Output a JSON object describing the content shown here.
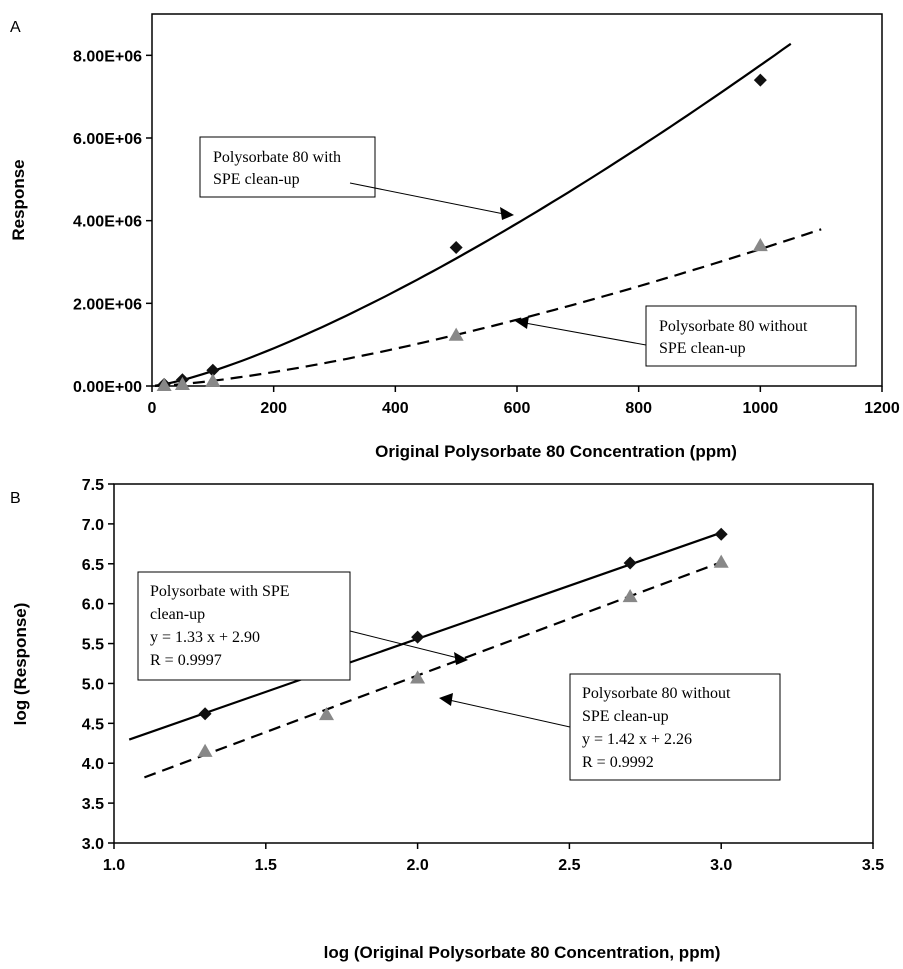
{
  "chart_data": [
    {
      "panel": "A",
      "type": "scatter",
      "xlabel": "Original Polysorbate 80 Concentration (ppm)",
      "ylabel": "Response",
      "xlim": [
        0,
        1200
      ],
      "ylim": [
        0,
        9000000
      ],
      "xticks": [
        "0",
        "200",
        "400",
        "600",
        "800",
        "1000",
        "1200"
      ],
      "yticks": [
        "0.00E+00",
        "2.00E+06",
        "4.00E+06",
        "6.00E+06",
        "8.00E+06"
      ],
      "series": [
        {
          "marker": "diamond",
          "color": "#111111",
          "line_style": "solid",
          "x": [
            20,
            50,
            100,
            500,
            1000
          ],
          "y": [
            40000,
            150000,
            380000,
            3350000,
            7400000
          ],
          "fit": {
            "a": 794,
            "b": 1.33,
            "x_range": [
              5,
              1050
            ]
          }
        },
        {
          "marker": "triangle",
          "color": "#888888",
          "line_style": "dashed",
          "x": [
            20,
            50,
            100,
            500,
            1000
          ],
          "y": [
            14000,
            40000,
            120000,
            1230000,
            3400000
          ],
          "fit": {
            "a": 182,
            "b": 1.42,
            "x_range": [
              5,
              1100
            ]
          }
        }
      ],
      "annotations": [
        {
          "lines": [
            "Polysorbate 80 with",
            "SPE clean-up"
          ],
          "target": "series-1"
        },
        {
          "lines": [
            "Polysorbate 80 without",
            "SPE clean-up"
          ],
          "target": "series-2"
        }
      ],
      "grid": false
    },
    {
      "panel": "B",
      "type": "scatter",
      "xlabel": "log (Original Polysorbate 80 Concentration, ppm)",
      "ylabel": "log (Response)",
      "xlim": [
        1.0,
        3.5
      ],
      "ylim": [
        3.0,
        7.5
      ],
      "xticks": [
        "1.0",
        "1.5",
        "2.0",
        "2.5",
        "3.0",
        "3.5"
      ],
      "yticks": [
        "3.0",
        "3.5",
        "4.0",
        "4.5",
        "5.0",
        "5.5",
        "6.0",
        "6.5",
        "7.0",
        "7.5"
      ],
      "series": [
        {
          "marker": "diamond",
          "color": "#111111",
          "line_style": "solid",
          "x": [
            1.3,
            1.7,
            2.0,
            2.7,
            3.0
          ],
          "y": [
            4.62,
            5.17,
            5.58,
            6.51,
            6.87
          ],
          "fit": {
            "slope": 1.33,
            "intercept": 2.9,
            "x_range": [
              1.05,
              3.0
            ]
          }
        },
        {
          "marker": "triangle",
          "color": "#888888",
          "line_style": "dashed",
          "x": [
            1.3,
            1.7,
            2.0,
            2.7,
            3.0
          ],
          "y": [
            4.15,
            4.61,
            5.07,
            6.09,
            6.52
          ],
          "fit": {
            "slope": 1.42,
            "intercept": 2.26,
            "x_range": [
              1.1,
              3.0
            ]
          }
        }
      ],
      "annotations": [
        {
          "lines": [
            "Polysorbate with SPE",
            "clean-up",
            "y = 1.33 x + 2.90",
            "R = 0.9997"
          ],
          "target": "series-1"
        },
        {
          "lines": [
            "Polysorbate 80 without",
            "SPE clean-up",
            "y = 1.42 x + 2.26",
            "R = 0.9992"
          ],
          "target": "series-2"
        }
      ],
      "grid": false
    }
  ]
}
